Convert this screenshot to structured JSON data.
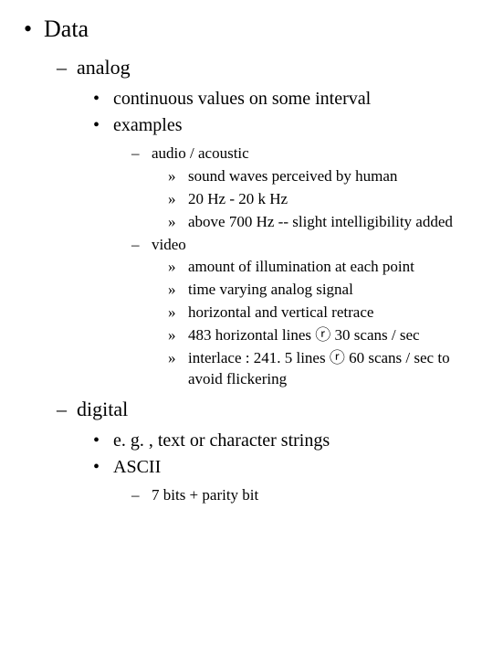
{
  "bullets": {
    "disc": "•",
    "dash": "–",
    "raquo": "»"
  },
  "items": {
    "data": "Data",
    "analog": "analog",
    "continuous": "continuous values on some interval",
    "examples": "examples",
    "audio": "audio / acoustic",
    "audio_1": "sound waves perceived by human",
    "audio_2": "20 Hz - 20 k Hz",
    "audio_3": "above 700 Hz -- slight intelligibility added",
    "video": "video",
    "video_1": "amount of illumination at each point",
    "video_2": "time varying analog signal",
    "video_3": "horizontal and vertical retrace",
    "video_4": "483 horizontal lines ⓡ 30 scans / sec",
    "video_5": "interlace : 241. 5 lines ⓡ 60 scans / sec to avoid flickering",
    "digital": "digital",
    "digital_1": "e. g. , text or character strings",
    "digital_2": "ASCII",
    "ascii_1": "7 bits + parity bit"
  }
}
